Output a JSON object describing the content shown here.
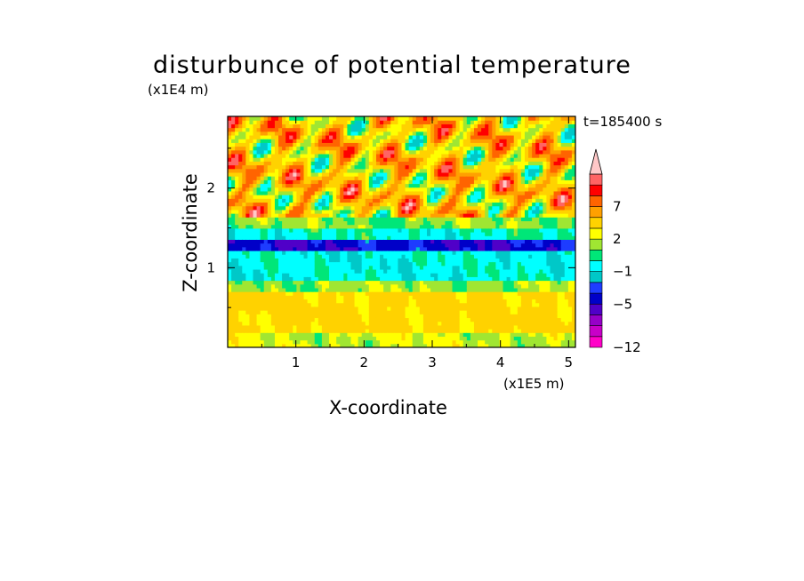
{
  "chart_data": {
    "type": "heatmap",
    "title": "disturbunce of potential temperature",
    "xlabel": "X-coordinate",
    "ylabel": "Z-coordinate",
    "x_unit": "(x1E5 m)",
    "y_unit": "(x1E4 m)",
    "time_label": "t=185400 s",
    "xlim": [
      0,
      5.1
    ],
    "ylim": [
      0,
      2.9
    ],
    "x_ticks": [
      1,
      2,
      3,
      4,
      5
    ],
    "x_tick_labels": [
      "1",
      "2",
      "3",
      "4",
      "5"
    ],
    "y_ticks": [
      1,
      2
    ],
    "y_tick_labels": [
      "1",
      "2"
    ],
    "colorbar": {
      "levels": [
        -12,
        -10,
        -8,
        -6,
        -5,
        -4,
        -2,
        -1,
        0,
        1,
        2,
        4,
        5,
        7,
        8,
        9
      ],
      "colors": [
        "#ff00c8",
        "#c800c8",
        "#9600c8",
        "#5000c8",
        "#0000c8",
        "#1e3cff",
        "#00c8c8",
        "#00ffff",
        "#00e678",
        "#a0e632",
        "#ffff00",
        "#ffd200",
        "#ffa000",
        "#ff6400",
        "#ff0000",
        "#ff6464",
        "#ffc8c8"
      ],
      "tick_labels": [
        "7",
        "2",
        "−1",
        "−5",
        "−12"
      ],
      "tick_values": [
        7,
        2,
        -1,
        -5,
        -12
      ],
      "extend": "max"
    },
    "bands": [
      {
        "z_from": 0.0,
        "z_to": 0.2,
        "value": 1.0
      },
      {
        "z_from": 0.2,
        "z_to": 0.7,
        "value": 2.5
      },
      {
        "z_from": 0.7,
        "z_to": 0.85,
        "value": 0.5
      },
      {
        "z_from": 0.85,
        "z_to": 1.2,
        "value": -1.5
      },
      {
        "z_from": 1.2,
        "z_to": 1.35,
        "value": -5.5
      },
      {
        "z_from": 1.35,
        "z_to": 1.5,
        "value": -1.2
      },
      {
        "z_from": 1.5,
        "z_to": 1.65,
        "value": 0.3
      },
      {
        "z_from": 1.65,
        "z_to": 2.9,
        "value": 3.0
      }
    ]
  }
}
